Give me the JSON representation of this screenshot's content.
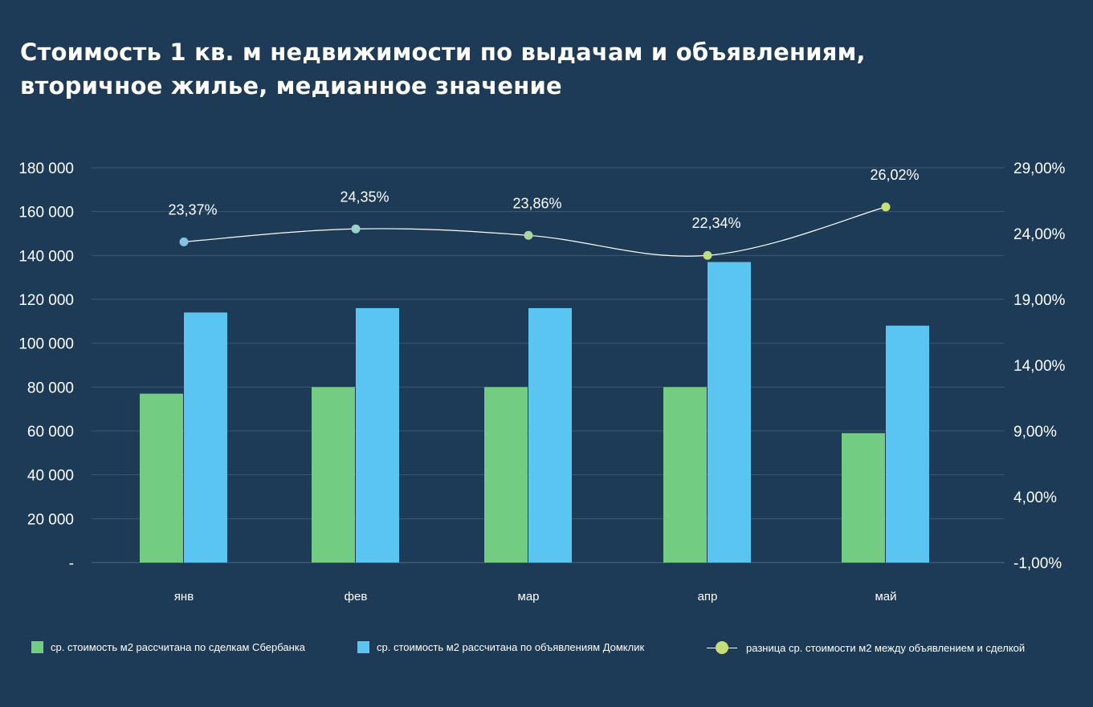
{
  "title_lines": [
    "Стоимость 1 кв. м недвижимости по выдачам и объявлениям,",
    "вторичное жилье, медианное значение"
  ],
  "colors": {
    "background": "#1d3b56",
    "sber": "#72cc82",
    "domclick": "#5bc5f2",
    "line": "#ffffff",
    "grid": "#3c5a73"
  },
  "legend": [
    {
      "label": "ср. стоимость м2 рассчитана по сделкам Сбербанка",
      "marker": "square",
      "color": "#72cc82"
    },
    {
      "label": "ср. стоимость м2 рассчитана по объявлениям Домклик",
      "marker": "square",
      "color": "#5bc5f2"
    },
    {
      "label": "разница ср. стоимости м2 между объявлением и сделкой",
      "marker": "line-dot",
      "color": "#c6de77"
    }
  ],
  "chart_data": {
    "type": "bar",
    "categories": [
      "янв",
      "фев",
      "мар",
      "апр",
      "май"
    ],
    "series": [
      {
        "name": "ср. стоимость м2 рассчитана по сделкам Сбербанка",
        "type": "bar",
        "axis": "left",
        "color": "#72cc82",
        "values": [
          77000,
          80000,
          80000,
          80000,
          59000
        ]
      },
      {
        "name": "ср. стоимость м2 рассчитана по объявлениям Домклик",
        "type": "bar",
        "axis": "left",
        "color": "#5bc5f2",
        "values": [
          114000,
          116000,
          116000,
          137000,
          108000
        ]
      },
      {
        "name": "разница ср. стоимости м2 между объявлением и сделкой",
        "type": "line",
        "axis": "right",
        "values": [
          23.37,
          24.35,
          23.86,
          22.34,
          26.02
        ],
        "labels": [
          "23,37%",
          "24,35%",
          "23,86%",
          "22,34%",
          "26,02%"
        ],
        "point_colors": [
          "#86c3df",
          "#9ad2c3",
          "#a9d69c",
          "#bfdd7f",
          "#c8df74"
        ]
      }
    ],
    "y_left": {
      "ylim": [
        0,
        180000
      ],
      "ticks": [
        0,
        20000,
        40000,
        60000,
        80000,
        100000,
        120000,
        140000,
        160000,
        180000
      ],
      "tick_labels": [
        "-",
        "20 000",
        "40 000",
        "60 000",
        "80 000",
        "100 000",
        "120 000",
        "140 000",
        "160 000",
        "180 000"
      ]
    },
    "y_right": {
      "ylim": [
        -1,
        29
      ],
      "ticks": [
        -1,
        4,
        9,
        14,
        19,
        24,
        29
      ],
      "tick_labels": [
        "-1,00%",
        "4,00%",
        "9,00%",
        "14,00%",
        "19,00%",
        "24,00%",
        "29,00%"
      ]
    },
    "grid": true,
    "legend_position": "bottom"
  }
}
